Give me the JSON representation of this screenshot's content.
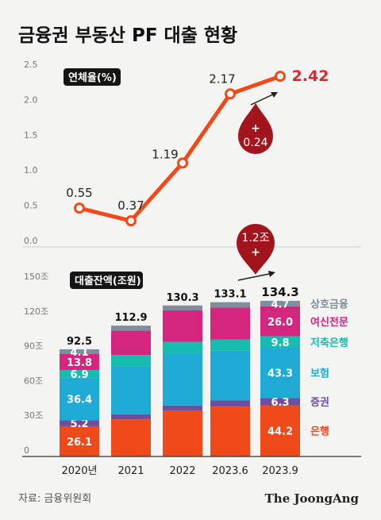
{
  "header": {
    "title": "금융권 부동산 PF 대출 현황"
  },
  "footer": {
    "source": "자료: 금융위원회",
    "brand": "The JoongAng"
  },
  "colors": {
    "line": "#f04a1a",
    "marker_fill": "#ffffff",
    "drop": "#a3151c",
    "highlight": "#e8232f",
    "bank": "#f04a1a",
    "securities": "#6c4fa0",
    "insurance": "#1eaad5",
    "savings": "#16bcae",
    "specialized": "#d4257f",
    "mutual": "#7e8e9c",
    "axis": "#777777",
    "grid": "#cccccc"
  },
  "chart_data": [
    {
      "type": "line",
      "legend_label": "연체율(%)",
      "categories": [
        "2020년",
        "2021",
        "2022",
        "2023.6",
        "2023.9"
      ],
      "values": [
        0.55,
        0.37,
        1.19,
        2.17,
        2.42
      ],
      "value_labels": [
        "0.55",
        "0.37",
        "1.19",
        "2.17",
        "2.42"
      ],
      "ylim": [
        0,
        2.5
      ],
      "yticks": [
        "0.0",
        "0.5",
        "1.0",
        "1.5",
        "2.0",
        "2.5"
      ],
      "annotation": {
        "top": "+",
        "bottom": "0.24"
      }
    },
    {
      "type": "bar",
      "stacked": true,
      "legend_label": "대출잔액(조원)",
      "categories": [
        "2020년",
        "2021",
        "2022",
        "2023.6",
        "2023.9"
      ],
      "ylim": [
        0,
        150
      ],
      "yticks": [
        "0",
        "30조",
        "60조",
        "90조",
        "120조",
        "150조"
      ],
      "totals": [
        92.5,
        112.9,
        130.3,
        133.1,
        134.3
      ],
      "total_labels": [
        "92.5",
        "112.9",
        "130.3",
        "133.1",
        "134.3"
      ],
      "series": [
        {
          "name": "은행",
          "color": "#f04a1a",
          "values": [
            26.1,
            32.0,
            39.5,
            43.0,
            44.2
          ],
          "labels": [
            "26.1",
            "",
            "",
            "",
            "44.2"
          ]
        },
        {
          "name": "증권",
          "color": "#6c4fa0",
          "values": [
            5.2,
            4.5,
            4.5,
            5.3,
            6.3
          ],
          "labels": [
            "5.2",
            "",
            "",
            "",
            "6.3"
          ]
        },
        {
          "name": "보험",
          "color": "#1eaad5",
          "values": [
            36.4,
            41.5,
            45.0,
            43.0,
            43.3
          ],
          "labels": [
            "36.4",
            "",
            "",
            "",
            "43.3"
          ]
        },
        {
          "name": "저축은행",
          "color": "#16bcae",
          "values": [
            6.9,
            9.5,
            10.0,
            9.7,
            9.8
          ],
          "labels": [
            "6.9",
            "",
            "",
            "",
            "9.8"
          ]
        },
        {
          "name": "여신전문",
          "color": "#d4257f",
          "values": [
            13.8,
            21.0,
            27.0,
            27.4,
            26.0
          ],
          "labels": [
            "13.8",
            "",
            "",
            "",
            "26.0"
          ]
        },
        {
          "name": "상호금융",
          "color": "#7e8e9c",
          "values": [
            4.1,
            4.4,
            4.3,
            4.7,
            4.7
          ],
          "labels": [
            "4.1",
            "",
            "",
            "",
            "4.7"
          ]
        }
      ],
      "annotation": {
        "top": "1.2조",
        "bottom": "+"
      }
    }
  ]
}
